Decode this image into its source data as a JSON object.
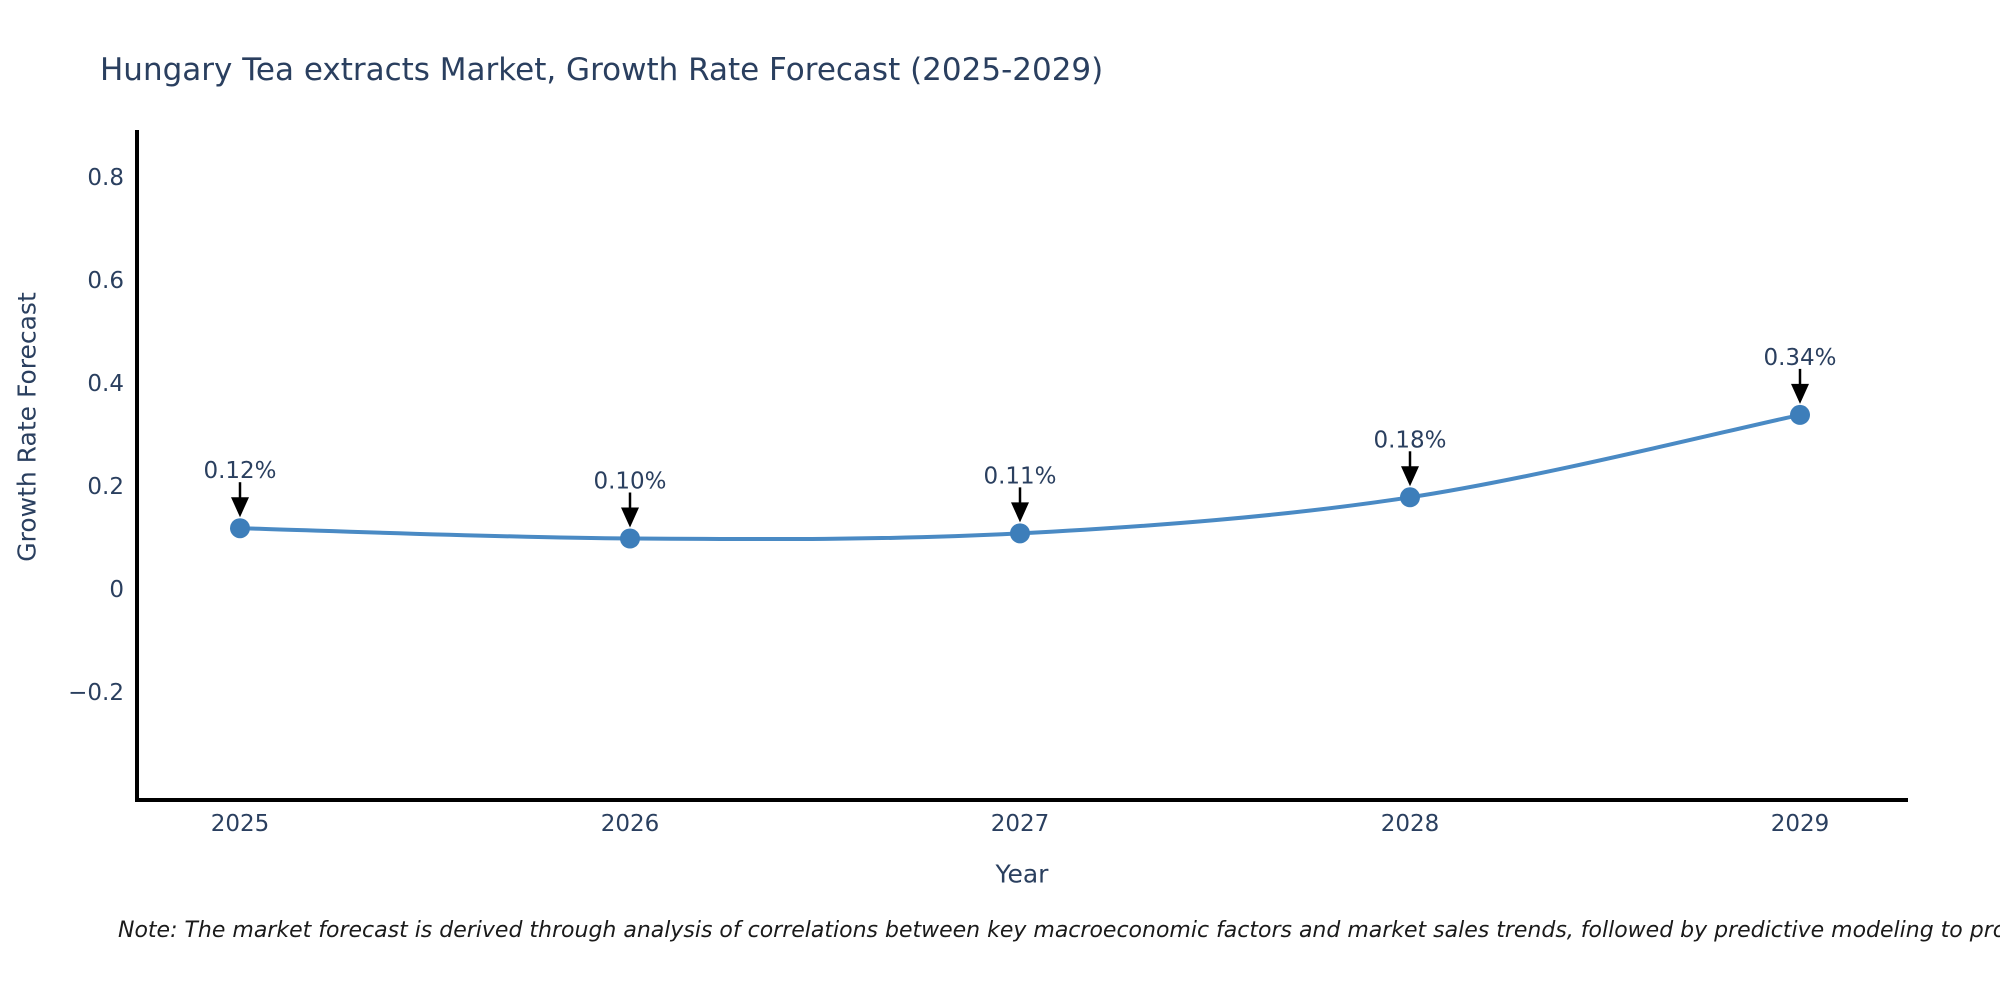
{
  "chart_data": {
    "type": "line",
    "title": "Hungary Tea extracts Market, Growth Rate Forecast (2025-2029)",
    "xlabel": "Year",
    "ylabel": "Growth Rate Forecast",
    "categories": [
      "2025",
      "2026",
      "2027",
      "2028",
      "2029"
    ],
    "series": [
      {
        "name": "Growth Rate Forecast",
        "values": [
          0.12,
          0.1,
          0.11,
          0.18,
          0.34
        ]
      }
    ],
    "point_labels": [
      "0.12%",
      "0.10%",
      "0.11%",
      "0.18%",
      "0.34%"
    ],
    "ytick_values": [
      -0.2,
      0,
      0.2,
      0.4,
      0.6,
      0.8
    ],
    "ytick_labels": [
      "−0.2",
      "0",
      "0.2",
      "0.4",
      "0.6",
      "0.8"
    ],
    "ylim": [
      -0.41,
      0.89
    ],
    "grid": false,
    "legend": "none",
    "line_shape": "spline",
    "colors": {
      "line": "#4a8ac4",
      "marker": "#3d7eba",
      "text": "#2a3f5f",
      "axis": "#000000",
      "annotation_arrow": "#000000"
    }
  },
  "note": {
    "text": "Note: The market forecast is derived through analysis of correlations between key macroeconomic factors and market sales trends, followed by predictive modeling to project future sa"
  }
}
